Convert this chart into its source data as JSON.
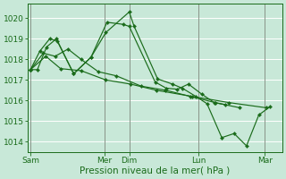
{
  "bg_color": "#c8e8d8",
  "grid_color": "#aad4c0",
  "line_color": "#1a6b1a",
  "ylim": [
    1013.5,
    1020.7
  ],
  "yticks": [
    1014,
    1015,
    1016,
    1017,
    1018,
    1019,
    1020
  ],
  "xlabel": "Pression niveau de la mer( hPa )",
  "xlabel_fontsize": 7.5,
  "tick_fontsize": 6.5,
  "day_labels": [
    "Sam",
    "Mer",
    "Dim",
    "Lun",
    "Mar"
  ],
  "day_positions": [
    0.0,
    3.0,
    4.0,
    6.8,
    9.5
  ],
  "xmin": -0.1,
  "xmax": 10.2,
  "series": [
    {
      "x": [
        0.0,
        0.28,
        0.65,
        1.05,
        1.75,
        2.45,
        3.1,
        3.75,
        4.0,
        5.05,
        5.5,
        5.95,
        6.4,
        6.95,
        7.45,
        7.9
      ],
      "y": [
        1017.5,
        1017.5,
        1018.6,
        1019.0,
        1017.3,
        1018.1,
        1019.8,
        1019.7,
        1019.6,
        1016.9,
        1016.6,
        1016.55,
        1016.8,
        1016.3,
        1015.9,
        1015.8
      ]
    },
    {
      "x": [
        0.0,
        0.38,
        0.78,
        1.08,
        1.75,
        2.45,
        3.05,
        4.0,
        4.2,
        5.15,
        5.75,
        6.15,
        6.7,
        7.15,
        7.75,
        8.25,
        8.75,
        9.25,
        9.7
      ],
      "y": [
        1017.5,
        1018.4,
        1019.0,
        1018.9,
        1017.3,
        1018.1,
        1019.3,
        1020.3,
        1019.6,
        1017.05,
        1016.8,
        1016.6,
        1016.2,
        1015.85,
        1014.2,
        1014.4,
        1013.8,
        1015.3,
        1015.7
      ]
    },
    {
      "x": [
        0.0,
        0.52,
        1.0,
        1.52,
        2.05,
        2.75,
        3.48,
        4.48,
        5.48,
        6.48,
        7.48,
        8.48
      ],
      "y": [
        1017.5,
        1018.3,
        1018.15,
        1018.5,
        1018.0,
        1017.4,
        1017.2,
        1016.7,
        1016.5,
        1016.2,
        1015.9,
        1015.65
      ]
    },
    {
      "x": [
        0.0,
        0.62,
        1.22,
        2.05,
        3.05,
        4.05,
        5.1,
        6.55,
        8.05,
        9.55
      ],
      "y": [
        1017.5,
        1018.15,
        1017.55,
        1017.45,
        1017.0,
        1016.8,
        1016.5,
        1016.2,
        1015.9,
        1015.65
      ]
    }
  ]
}
